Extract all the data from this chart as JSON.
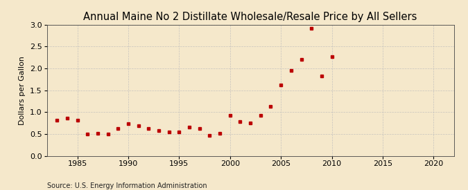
{
  "title": "Annual Maine No 2 Distillate Wholesale/Resale Price by All Sellers",
  "ylabel": "Dollars per Gallon",
  "source": "Source: U.S. Energy Information Administration",
  "years": [
    1983,
    1984,
    1985,
    1986,
    1987,
    1988,
    1989,
    1990,
    1991,
    1992,
    1993,
    1994,
    1995,
    1996,
    1997,
    1998,
    1999,
    2000,
    2001,
    2002,
    2003,
    2004,
    2005,
    2006,
    2007,
    2008,
    2009,
    2010
  ],
  "values": [
    0.82,
    0.86,
    0.82,
    0.5,
    0.51,
    0.5,
    0.62,
    0.73,
    0.68,
    0.62,
    0.58,
    0.55,
    0.55,
    0.65,
    0.63,
    0.47,
    0.52,
    0.93,
    0.78,
    0.75,
    0.93,
    1.13,
    1.62,
    1.95,
    2.21,
    2.92,
    1.83,
    2.27
  ],
  "marker_color": "#bb0000",
  "marker_size": 3.5,
  "background_color": "#f5e8cb",
  "grid_color": "#bbbbbb",
  "xlim": [
    1982,
    2022
  ],
  "ylim": [
    0.0,
    3.0
  ],
  "xticks": [
    1985,
    1990,
    1995,
    2000,
    2005,
    2010,
    2015,
    2020
  ],
  "yticks": [
    0.0,
    0.5,
    1.0,
    1.5,
    2.0,
    2.5,
    3.0
  ],
  "title_fontsize": 10.5,
  "label_fontsize": 8,
  "tick_fontsize": 8,
  "source_fontsize": 7
}
